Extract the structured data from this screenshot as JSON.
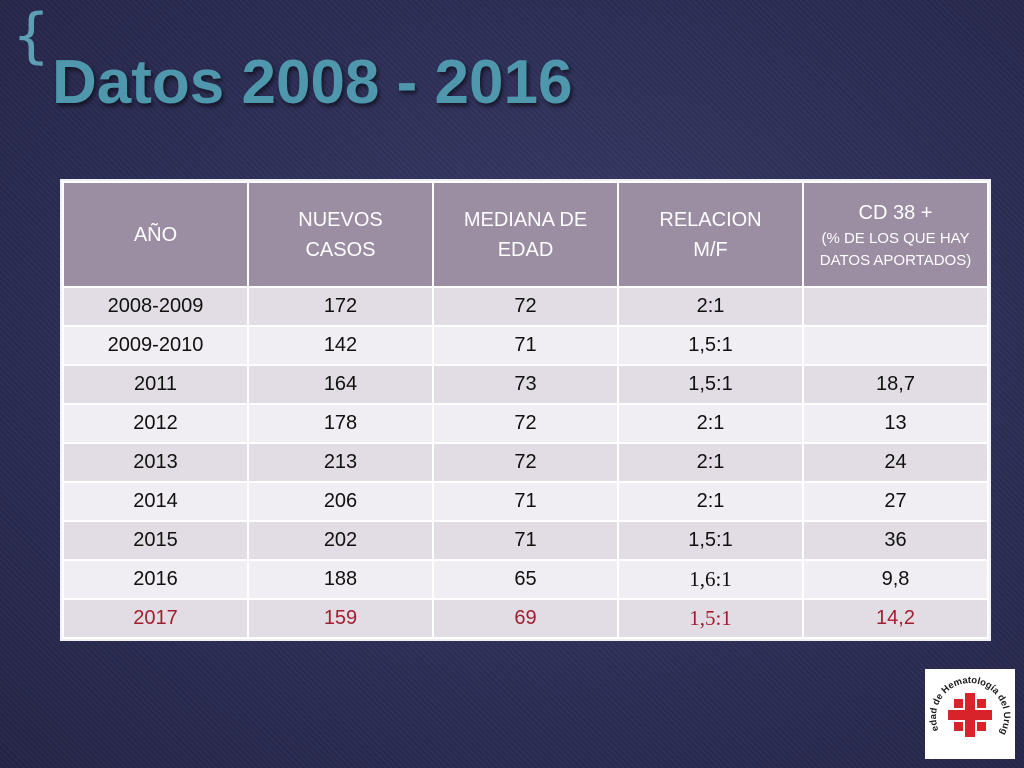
{
  "slide": {
    "title": "Datos 2008 - 2016"
  },
  "table": {
    "headers": [
      {
        "line": "AÑO"
      },
      {
        "line": "NUEVOS CASOS"
      },
      {
        "line": "MEDIANA DE EDAD"
      },
      {
        "line": "RELACION M/F"
      },
      {
        "line": "CD 38 +",
        "sub": "(% DE LOS QUE HAY DATOS APORTADOS)"
      }
    ],
    "rows": [
      [
        "2008-2009",
        "172",
        "72",
        "2:1",
        ""
      ],
      [
        "2009-2010",
        "142",
        "71",
        "1,5:1",
        ""
      ],
      [
        "2011",
        "164",
        "73",
        "1,5:1",
        "18,7"
      ],
      [
        "2012",
        "178",
        "72",
        "2:1",
        "13"
      ],
      [
        "2013",
        "213",
        "72",
        "2:1",
        "24"
      ],
      [
        "2014",
        "206",
        "71",
        "2:1",
        "27"
      ],
      [
        "2015",
        "202",
        "71",
        "1,5:1",
        "36"
      ],
      [
        "2016",
        "188",
        "65",
        "1,6:1",
        "9,8"
      ],
      [
        "2017",
        "159",
        "69",
        "1,5:1",
        "14,2"
      ]
    ],
    "highlight_color": "#a02030"
  },
  "logo": {
    "text": "Sociedad de Hematología del Uruguay",
    "accent_color": "#d9232b"
  }
}
